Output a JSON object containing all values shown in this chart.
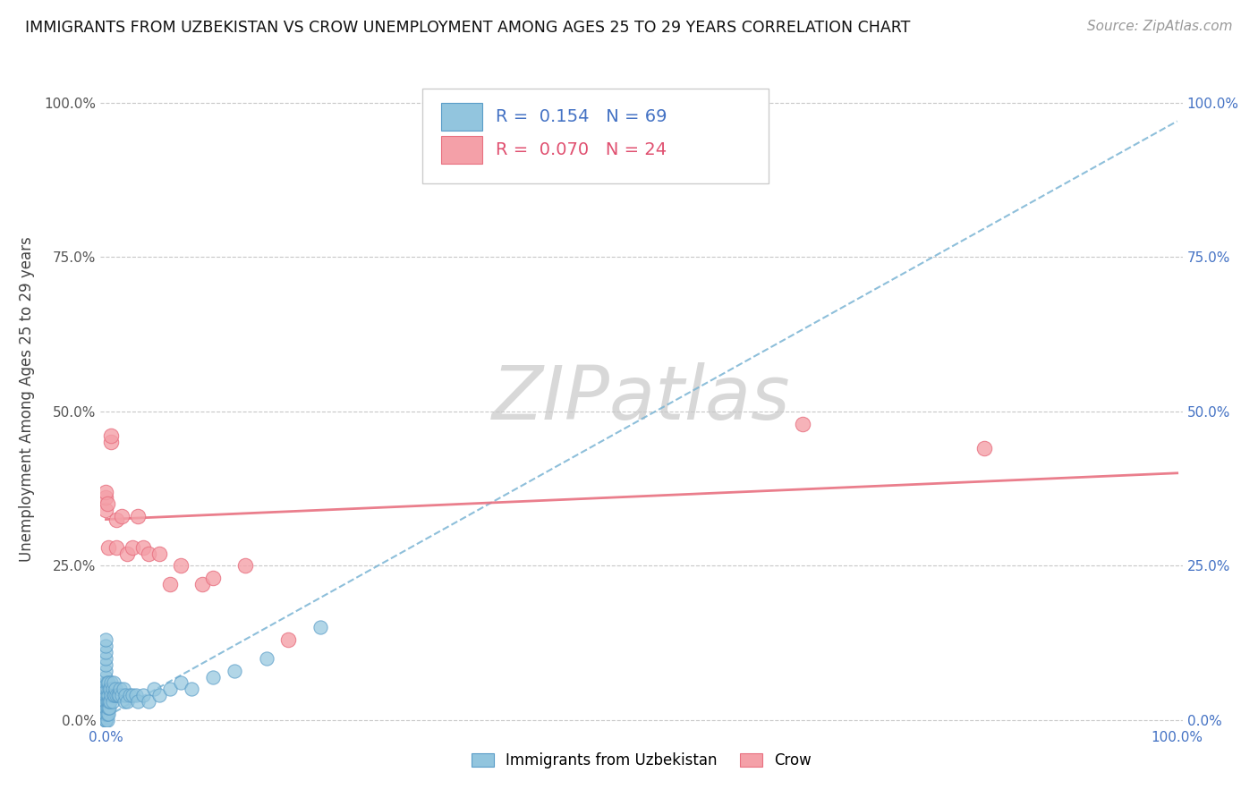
{
  "title": "IMMIGRANTS FROM UZBEKISTAN VS CROW UNEMPLOYMENT AMONG AGES 25 TO 29 YEARS CORRELATION CHART",
  "source": "Source: ZipAtlas.com",
  "xlabel": "Immigrants from Uzbekistan",
  "ylabel": "Unemployment Among Ages 25 to 29 years",
  "watermark": "ZIPatlas",
  "blue_R": 0.154,
  "blue_N": 69,
  "pink_R": 0.07,
  "pink_N": 24,
  "blue_color": "#92c5de",
  "blue_edge": "#5a9dc8",
  "pink_color": "#f4a0a8",
  "pink_edge": "#e87080",
  "blue_scatter_x": [
    0.0,
    0.0,
    0.0,
    0.0,
    0.0,
    0.0,
    0.0,
    0.0,
    0.0,
    0.0,
    0.0,
    0.0,
    0.0,
    0.0,
    0.0,
    0.0,
    0.0,
    0.0,
    0.0,
    0.0,
    0.001,
    0.001,
    0.001,
    0.001,
    0.001,
    0.001,
    0.001,
    0.002,
    0.002,
    0.002,
    0.002,
    0.002,
    0.003,
    0.003,
    0.003,
    0.004,
    0.004,
    0.005,
    0.005,
    0.006,
    0.006,
    0.007,
    0.007,
    0.008,
    0.009,
    0.01,
    0.011,
    0.012,
    0.013,
    0.015,
    0.016,
    0.017,
    0.018,
    0.02,
    0.022,
    0.025,
    0.028,
    0.03,
    0.035,
    0.04,
    0.045,
    0.05,
    0.06,
    0.07,
    0.08,
    0.1,
    0.12,
    0.15,
    0.2
  ],
  "blue_scatter_y": [
    0.0,
    0.0,
    0.0,
    0.01,
    0.01,
    0.01,
    0.02,
    0.02,
    0.03,
    0.03,
    0.04,
    0.05,
    0.06,
    0.07,
    0.08,
    0.09,
    0.1,
    0.11,
    0.12,
    0.13,
    0.0,
    0.01,
    0.02,
    0.03,
    0.04,
    0.05,
    0.06,
    0.01,
    0.02,
    0.03,
    0.04,
    0.06,
    0.02,
    0.03,
    0.05,
    0.03,
    0.05,
    0.04,
    0.06,
    0.03,
    0.05,
    0.04,
    0.06,
    0.04,
    0.05,
    0.04,
    0.04,
    0.04,
    0.05,
    0.04,
    0.05,
    0.03,
    0.04,
    0.03,
    0.04,
    0.04,
    0.04,
    0.03,
    0.04,
    0.03,
    0.05,
    0.04,
    0.05,
    0.06,
    0.05,
    0.07,
    0.08,
    0.1,
    0.15
  ],
  "pink_scatter_x": [
    0.0,
    0.0,
    0.0,
    0.001,
    0.002,
    0.005,
    0.005,
    0.01,
    0.01,
    0.015,
    0.02,
    0.025,
    0.03,
    0.035,
    0.04,
    0.05,
    0.06,
    0.07,
    0.09,
    0.1,
    0.13,
    0.17,
    0.65,
    0.82
  ],
  "pink_scatter_y": [
    0.34,
    0.36,
    0.37,
    0.35,
    0.28,
    0.45,
    0.46,
    0.28,
    0.325,
    0.33,
    0.27,
    0.28,
    0.33,
    0.28,
    0.27,
    0.27,
    0.22,
    0.25,
    0.22,
    0.23,
    0.25,
    0.13,
    0.48,
    0.44
  ],
  "blue_trend_x": [
    0.0,
    1.0
  ],
  "blue_trend_y": [
    0.005,
    0.97
  ],
  "pink_trend_x": [
    0.0,
    1.0
  ],
  "pink_trend_y": [
    0.325,
    0.4
  ],
  "xlim": [
    -0.005,
    1.005
  ],
  "ylim": [
    -0.01,
    1.05
  ],
  "xticks": [
    0.0,
    1.0
  ],
  "xtick_labels": [
    "0.0%",
    "100.0%"
  ],
  "yticks": [
    0.0,
    0.25,
    0.5,
    0.75,
    1.0
  ],
  "ytick_labels": [
    "0.0%",
    "25.0%",
    "50.0%",
    "75.0%",
    "100.0%"
  ]
}
